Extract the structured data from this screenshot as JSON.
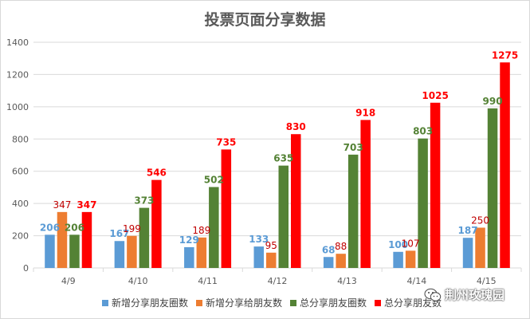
{
  "chart_data": {
    "type": "bar",
    "title": "投票页面分享数据",
    "categories": [
      "4/9",
      "4/10",
      "4/11",
      "4/12",
      "4/13",
      "4/14",
      "4/15"
    ],
    "series": [
      {
        "name": "新增分享朋友圈数",
        "color": "#5b9bd5",
        "label_color": "#5b9bd5",
        "values": [
          206,
          167,
          129,
          133,
          68,
          100,
          187
        ]
      },
      {
        "name": "新增分享给朋友数",
        "color": "#ed7d31",
        "label_color": "#c00000",
        "values": [
          347,
          199,
          189,
          95,
          88,
          107,
          250
        ]
      },
      {
        "name": "总分享朋友圈数",
        "color": "#548235",
        "label_color": "#548235",
        "values": [
          206,
          373,
          502,
          635,
          703,
          803,
          990
        ]
      },
      {
        "name": "总分享朋友数",
        "color": "#ff0000",
        "label_color": "#ff0000",
        "values": [
          347,
          546,
          735,
          830,
          918,
          1025,
          1275
        ]
      }
    ],
    "ylim": [
      0,
      1400
    ],
    "yticks": [
      0,
      200,
      400,
      600,
      800,
      1000,
      1200,
      1400
    ],
    "grid": true,
    "legend_position": "bottom"
  },
  "watermark": {
    "text": "荆州玫瑰园",
    "icon": "wechat-icon"
  }
}
